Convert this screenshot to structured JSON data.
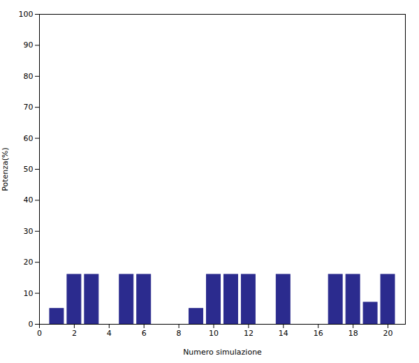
{
  "chart_data": {
    "type": "bar",
    "x": [
      1,
      2,
      3,
      5,
      6,
      9,
      10,
      11,
      12,
      14,
      17,
      18,
      19,
      20
    ],
    "values": [
      5,
      16,
      16,
      16,
      16,
      5,
      16,
      16,
      16,
      16,
      16,
      16,
      7,
      16
    ],
    "color": "#2b2b8e",
    "xlim": [
      0,
      21
    ],
    "ylim": [
      0,
      100
    ],
    "xticks": [
      0,
      2,
      4,
      6,
      8,
      10,
      12,
      14,
      16,
      18,
      20
    ],
    "yticks": [
      0,
      10,
      20,
      30,
      40,
      50,
      60,
      70,
      80,
      90,
      100
    ],
    "xlabel": "Numero simulazione",
    "ylabel": "Potenza(%)"
  }
}
